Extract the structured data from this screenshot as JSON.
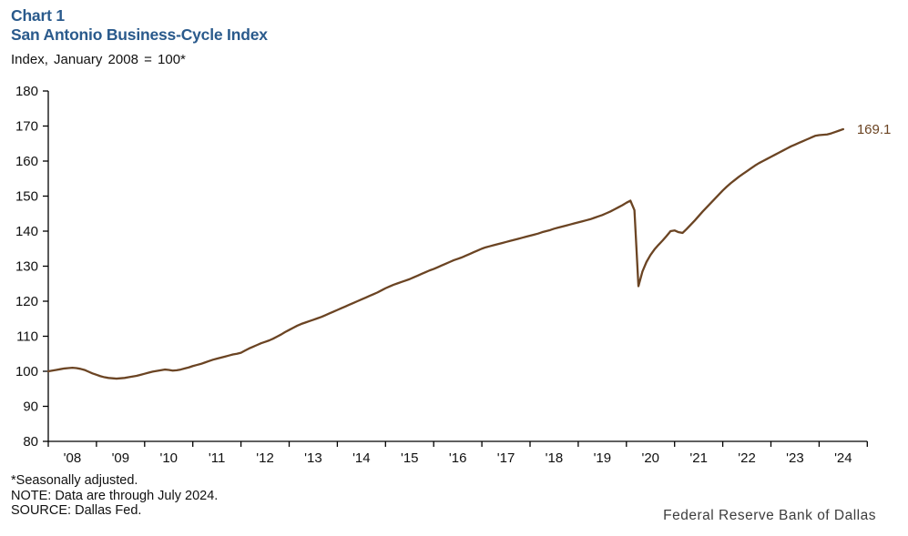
{
  "header": {
    "chart_label": "Chart 1",
    "title": "San Antonio Business-Cycle Index",
    "subtitle": "Index, January 2008 = 100*"
  },
  "footer": {
    "footnote": "*Seasonally adjusted.",
    "note": "NOTE: Data are through July 2024.",
    "source": "SOURCE: Dallas Fed.",
    "brand": "Federal Reserve Bank of Dallas"
  },
  "colors": {
    "title_blue": "#2a5a8c",
    "line_brown": "#6b4423",
    "axis_black": "#000000"
  },
  "chart_data": {
    "type": "line",
    "title": "San Antonio Business-Cycle Index",
    "subtitle": "Index, January 2008 = 100*",
    "ylim": [
      80,
      180
    ],
    "yticks": [
      80,
      90,
      100,
      110,
      120,
      130,
      140,
      150,
      160,
      170,
      180
    ],
    "x_start_year": 2008,
    "x_axis_end_year": 2025,
    "xtick_labels": [
      "'08",
      "'09",
      "'10",
      "'11",
      "'12",
      "'13",
      "'14",
      "'15",
      "'16",
      "'17",
      "'18",
      "'19",
      "'20",
      "'21",
      "'22",
      "'23",
      "'24"
    ],
    "grid": false,
    "legend": false,
    "end_label": "169.1",
    "series": [
      {
        "name": "San Antonio Business-Cycle Index",
        "frequency": "monthly",
        "start": "2008-01",
        "end": "2024-07",
        "values": [
          100.0,
          100.2,
          100.4,
          100.6,
          100.8,
          100.9,
          101.0,
          100.9,
          100.7,
          100.4,
          99.9,
          99.4,
          99.0,
          98.6,
          98.3,
          98.1,
          98.0,
          97.9,
          98.0,
          98.1,
          98.3,
          98.5,
          98.7,
          99.0,
          99.3,
          99.6,
          99.9,
          100.1,
          100.3,
          100.5,
          100.4,
          100.2,
          100.3,
          100.5,
          100.8,
          101.1,
          101.5,
          101.8,
          102.1,
          102.5,
          102.9,
          103.3,
          103.6,
          103.9,
          104.2,
          104.5,
          104.8,
          105.0,
          105.3,
          105.9,
          106.5,
          107.0,
          107.5,
          108.0,
          108.4,
          108.8,
          109.3,
          109.9,
          110.5,
          111.2,
          111.8,
          112.4,
          113.0,
          113.5,
          113.9,
          114.3,
          114.7,
          115.1,
          115.5,
          116.0,
          116.5,
          117.0,
          117.5,
          118.0,
          118.5,
          119.0,
          119.5,
          120.0,
          120.5,
          121.0,
          121.5,
          122.0,
          122.5,
          123.1,
          123.7,
          124.2,
          124.7,
          125.1,
          125.5,
          125.9,
          126.3,
          126.8,
          127.3,
          127.8,
          128.3,
          128.8,
          129.2,
          129.7,
          130.2,
          130.7,
          131.2,
          131.7,
          132.1,
          132.5,
          133.0,
          133.5,
          134.0,
          134.5,
          135.0,
          135.4,
          135.7,
          136.0,
          136.3,
          136.6,
          136.9,
          137.2,
          137.5,
          137.8,
          138.1,
          138.4,
          138.7,
          139.0,
          139.3,
          139.7,
          140.0,
          140.3,
          140.7,
          141.0,
          141.3,
          141.6,
          141.9,
          142.2,
          142.5,
          142.8,
          143.1,
          143.4,
          143.8,
          144.2,
          144.6,
          145.1,
          145.6,
          146.2,
          146.8,
          147.4,
          148.1,
          148.7,
          146.0,
          124.3,
          128.5,
          131.2,
          133.2,
          134.8,
          136.1,
          137.3,
          138.6,
          140.0,
          140.2,
          139.7,
          139.5,
          140.6,
          141.8,
          143.0,
          144.3,
          145.6,
          146.8,
          148.0,
          149.2,
          150.4,
          151.6,
          152.7,
          153.7,
          154.6,
          155.5,
          156.3,
          157.1,
          157.9,
          158.7,
          159.4,
          160.0,
          160.6,
          161.2,
          161.8,
          162.4,
          163.0,
          163.6,
          164.2,
          164.7,
          165.2,
          165.7,
          166.2,
          166.7,
          167.2,
          167.4,
          167.5,
          167.6,
          167.9,
          168.3,
          168.7,
          169.1
        ]
      }
    ]
  }
}
